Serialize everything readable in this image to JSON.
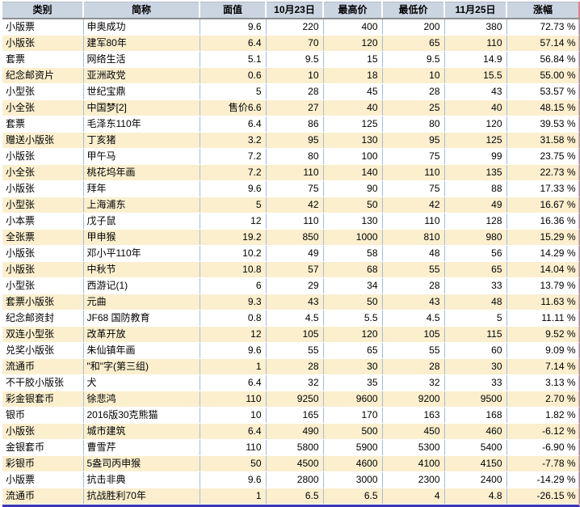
{
  "chart_data": {
    "type": "table",
    "columns": [
      "类别",
      "简称",
      "面值",
      "10月23日",
      "最高价",
      "最低价",
      "11月25日",
      "涨幅"
    ],
    "rows": [
      [
        "小版票",
        "申奥成功",
        "9.6",
        "220",
        "400",
        "200",
        "380",
        "72.73 %"
      ],
      [
        "小版张",
        "建军80年",
        "6.4",
        "70",
        "120",
        "65",
        "110",
        "57.14 %"
      ],
      [
        "套票",
        "网络生活",
        "5.1",
        "9.5",
        "15",
        "9.5",
        "14.9",
        "56.84 %"
      ],
      [
        "纪念邮资片",
        "亚洲政党",
        "0.6",
        "10",
        "18",
        "10",
        "15.5",
        "55.00 %"
      ],
      [
        "小型张",
        "世纪宝鼎",
        "5",
        "28",
        "45",
        "28",
        "43",
        "53.57 %"
      ],
      [
        "小全张",
        "中国梦[2]",
        "售价6.6",
        "27",
        "40",
        "25",
        "40",
        "48.15 %"
      ],
      [
        "套票",
        "毛泽东110年",
        "6.4",
        "86",
        "125",
        "80",
        "120",
        "39.53 %"
      ],
      [
        "赠送小版张",
        "丁亥猪",
        "3.2",
        "95",
        "130",
        "95",
        "125",
        "31.58 %"
      ],
      [
        "小版张",
        "甲午马",
        "7.2",
        "80",
        "100",
        "75",
        "99",
        "23.75 %"
      ],
      [
        "小全张",
        "桃花坞年画",
        "7.2",
        "110",
        "140",
        "110",
        "135",
        "22.73 %"
      ],
      [
        "小版张",
        "拜年",
        "9.6",
        "75",
        "90",
        "75",
        "88",
        "17.33 %"
      ],
      [
        "小型张",
        "上海浦东",
        "5",
        "42",
        "50",
        "42",
        "49",
        "16.67 %"
      ],
      [
        "小本票",
        "戊子鼠",
        "12",
        "110",
        "130",
        "110",
        "128",
        "16.36 %"
      ],
      [
        "全张票",
        "甲申猴",
        "19.2",
        "850",
        "1000",
        "810",
        "980",
        "15.29 %"
      ],
      [
        "小版张",
        "邓小平110年",
        "10.2",
        "49",
        "58",
        "48",
        "56",
        "14.29 %"
      ],
      [
        "小版张",
        "中秋节",
        "10.8",
        "57",
        "68",
        "55",
        "65",
        "14.04 %"
      ],
      [
        "小型张",
        "西游记(1)",
        "6",
        "29",
        "34",
        "28",
        "33",
        "13.79 %"
      ],
      [
        "套票小版张",
        "元曲",
        "9.3",
        "43",
        "50",
        "43",
        "48",
        "11.63 %"
      ],
      [
        "纪念邮资封",
        "JF68 国防教育",
        "0.8",
        "4.5",
        "5.5",
        "4.5",
        "5",
        "11.11 %"
      ],
      [
        "双连小型张",
        "改革开放",
        "12",
        "105",
        "120",
        "105",
        "115",
        "9.52 %"
      ],
      [
        "兑奖小版张",
        "朱仙镇年画",
        "9.6",
        "55",
        "65",
        "55",
        "60",
        "9.09 %"
      ],
      [
        "流通币",
        "\"和\"字(第三组)",
        "1",
        "28",
        "30",
        "28",
        "30",
        "7.14 %"
      ],
      [
        "不干胶小版张",
        "犬",
        "6.4",
        "32",
        "35",
        "32",
        "33",
        "3.13 %"
      ],
      [
        "彩金银套币",
        "徐悲鸿",
        "110",
        "9250",
        "9600",
        "9200",
        "9500",
        "2.70 %"
      ],
      [
        "银币",
        "2016版30克熊猫",
        "10",
        "165",
        "170",
        "163",
        "168",
        "1.82 %"
      ],
      [
        "小版张",
        "城市建筑",
        "6.4",
        "490",
        "500",
        "450",
        "460",
        "-6.12 %"
      ],
      [
        "金银套币",
        "曹雪芹",
        "110",
        "5800",
        "5900",
        "5300",
        "5400",
        "-6.90 %"
      ],
      [
        "彩银币",
        "5盎司丙申猴",
        "50",
        "4500",
        "4600",
        "4100",
        "4150",
        "-7.78 %"
      ],
      [
        "小版票",
        "抗击非典",
        "9.6",
        "2800",
        "3000",
        "2300",
        "2400",
        "-14.29 %"
      ],
      [
        "流通币",
        "抗战胜利70年",
        "1",
        "6.5",
        "6.5",
        "4",
        "4.8",
        "-26.15 %"
      ]
    ]
  },
  "colors": {
    "header_bg": "#CBD4E1",
    "row_stripe": "#FBEFCE",
    "grid_line": "#A6BCD8",
    "header_underline": "#8F8F8F",
    "bottom_border": "#3C38B0",
    "right_border": "#E08080"
  }
}
